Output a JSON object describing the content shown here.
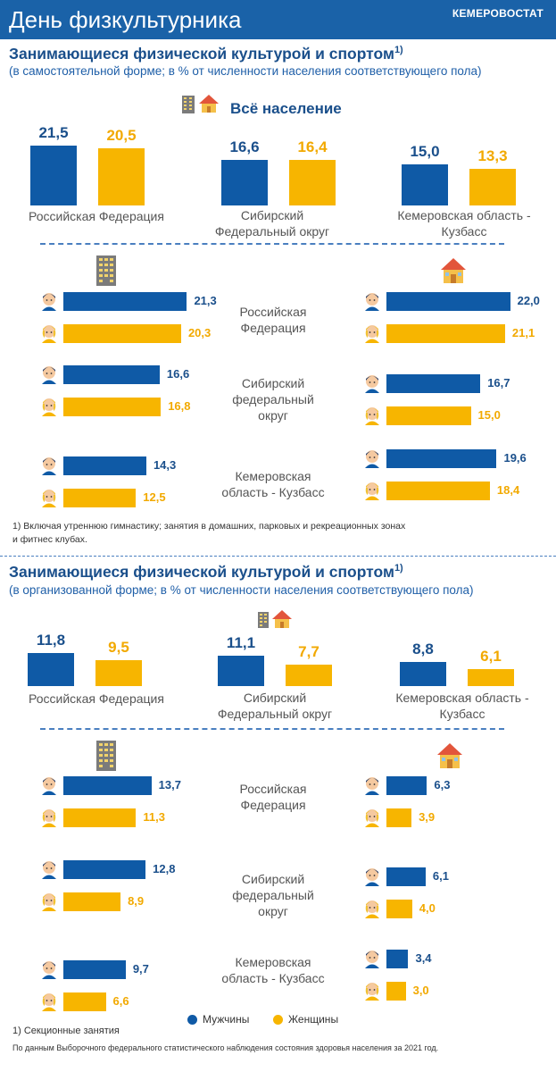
{
  "header": {
    "title": "День физкультурника",
    "brand": "КЕМЕРОВОСТАТ"
  },
  "section1": {
    "title": "Занимающиеся физической культурой и спортом",
    "sup": "1)",
    "subtitle": "(в самостоятельной форме; в %  от численности  населения  соответствующего пола)",
    "all_label": "Всё население",
    "footnote_line1": "1) Включая утреннюю гимнастику; занятия  в домашних, парковых  и рекреационных  зонах",
    "footnote_line2": "и фитнес  клубах."
  },
  "section2": {
    "title": "Занимающиеся физической культурой и спортом",
    "sup": "1)",
    "subtitle": "(в организованной форме; в %  от численности  населения  соответствующего пола)",
    "footnote": "1) Секционные  занятия",
    "source": "По данным Выборочного  федерального  статистического наблюдения  состояния здоровья населения  за 2021 год."
  },
  "regions": {
    "rf_top": "Российская  Федерация",
    "sfo_top_1": "Сибирский",
    "sfo_top_2": "Федеральный округ",
    "kuz_top_1": "Кемеровская область -",
    "kuz_top_2": "Кузбасс",
    "rf_mid_1": "Российская",
    "rf_mid_2": "Федерация",
    "sfo_mid_1": "Сибирский",
    "sfo_mid_2": "федеральный",
    "sfo_mid_3": "округ",
    "kuz_mid_1": "Кемеровская",
    "kuz_mid_2": "область - Кузбасс"
  },
  "legend": {
    "men": "Мужчины",
    "women": "Женщины"
  },
  "colors": {
    "men": "#0f5aa6",
    "women": "#f7b500"
  },
  "chart_data": [
    {
      "type": "bar",
      "title": "Всё население",
      "categories": [
        "Российская Федерация",
        "Сибирский Федеральный округ",
        "Кемеровская область - Кузбасс"
      ],
      "series": [
        {
          "name": "Мужчины",
          "values": [
            21.5,
            16.6,
            15.0
          ]
        },
        {
          "name": "Женщины",
          "values": [
            20.5,
            16.4,
            13.3
          ]
        }
      ],
      "labels": {
        "m": [
          "21,5",
          "16,6",
          "15,0"
        ],
        "w": [
          "20,5",
          "16,4",
          "13,3"
        ]
      }
    },
    {
      "type": "bar",
      "orientation": "horizontal",
      "title": "",
      "icon": "city-building-icon",
      "categories": [
        "Российская Федерация",
        "Сибирский федеральный округ",
        "Кемеровская область - Кузбасс"
      ],
      "series": [
        {
          "name": "Мужчины",
          "values": [
            21.3,
            16.6,
            14.3
          ]
        },
        {
          "name": "Женщины",
          "values": [
            20.3,
            16.8,
            12.5
          ]
        }
      ],
      "labels": {
        "m": [
          "21,3",
          "16,6",
          "14,3"
        ],
        "w": [
          "20,3",
          "16,8",
          "12,5"
        ]
      }
    },
    {
      "type": "bar",
      "orientation": "horizontal",
      "title": "",
      "icon": "village-house-icon",
      "categories": [
        "Российская Федерация",
        "Сибирский федеральный округ",
        "Кемеровская область - Кузбасс"
      ],
      "series": [
        {
          "name": "Мужчины",
          "values": [
            22.0,
            16.7,
            19.6
          ]
        },
        {
          "name": "Женщины",
          "values": [
            21.1,
            15.0,
            18.4
          ]
        }
      ],
      "labels": {
        "m": [
          "22,0",
          "16,7",
          "19,6"
        ],
        "w": [
          "21,1",
          "15,0",
          "18,4"
        ]
      }
    },
    {
      "type": "bar",
      "title": "",
      "categories": [
        "Российская Федерация",
        "Сибирский Федеральный округ",
        "Кемеровская область - Кузбасс"
      ],
      "series": [
        {
          "name": "Мужчины",
          "values": [
            11.8,
            11.1,
            8.8
          ]
        },
        {
          "name": "Женщины",
          "values": [
            9.5,
            7.7,
            6.1
          ]
        }
      ],
      "labels": {
        "m": [
          "11,8",
          "11,1",
          "8,8"
        ],
        "w": [
          "9,5",
          "7,7",
          "6,1"
        ]
      }
    },
    {
      "type": "bar",
      "orientation": "horizontal",
      "title": "",
      "icon": "city-building-icon",
      "categories": [
        "Российская Федерация",
        "Сибирский федеральный округ",
        "Кемеровская область - Кузбасс"
      ],
      "series": [
        {
          "name": "Мужчины",
          "values": [
            13.7,
            12.8,
            9.7
          ]
        },
        {
          "name": "Женщины",
          "values": [
            11.3,
            8.9,
            6.6
          ]
        }
      ],
      "labels": {
        "m": [
          "13,7",
          "12,8",
          "9,7"
        ],
        "w": [
          "11,3",
          "8,9",
          "6,6"
        ]
      }
    },
    {
      "type": "bar",
      "orientation": "horizontal",
      "title": "",
      "icon": "village-house-icon",
      "categories": [
        "Российская Федерация",
        "Сибирский федеральный округ",
        "Кемеровская область - Кузбасс"
      ],
      "series": [
        {
          "name": "Мужчины",
          "values": [
            6.3,
            6.1,
            3.4
          ]
        },
        {
          "name": "Женщины",
          "values": [
            3.9,
            4.0,
            3.0
          ]
        }
      ],
      "labels": {
        "m": [
          "6,3",
          "6,1",
          "3,4"
        ],
        "w": [
          "3,9",
          "4,0",
          "3,0"
        ]
      }
    }
  ]
}
